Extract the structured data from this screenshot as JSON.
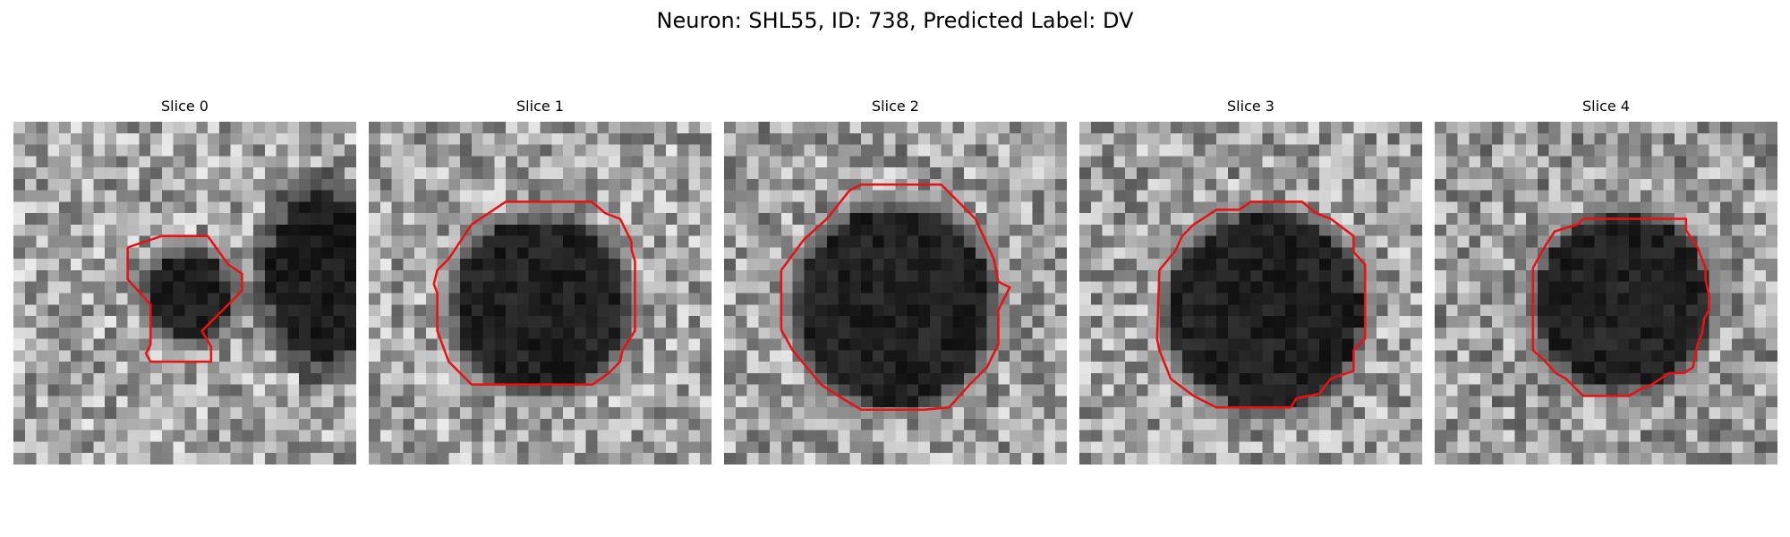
{
  "figure": {
    "title": "Neuron: SHL55, ID: 738, Predicted Label: DV"
  },
  "panels": [
    {
      "title": "Slice 0",
      "seed": 11,
      "contour_color": "#e81212"
    },
    {
      "title": "Slice 1",
      "seed": 23,
      "contour_color": "#e81212"
    },
    {
      "title": "Slice 2",
      "seed": 37,
      "contour_color": "#e81212"
    },
    {
      "title": "Slice 3",
      "seed": 41,
      "contour_color": "#e81212"
    },
    {
      "title": "Slice 4",
      "seed": 59,
      "contour_color": "#e81212"
    }
  ],
  "colormap": "gray"
}
